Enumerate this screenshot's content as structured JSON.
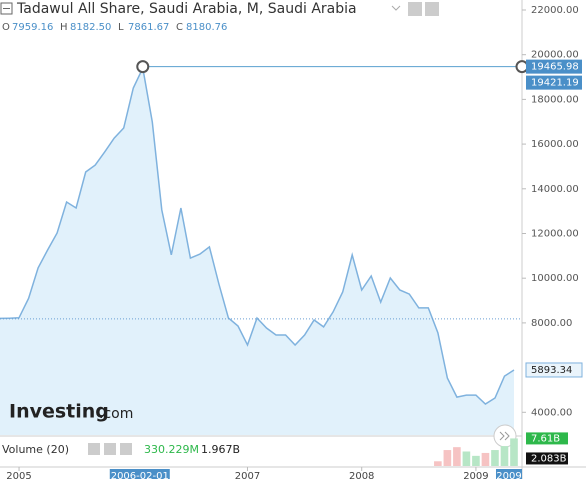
{
  "chart_data": {
    "type": "area",
    "title": "Tadawul All Share, Saudi Arabia, M, Saudi Arabia",
    "ohlc": [
      {
        "label": "O",
        "text": "7959.16"
      },
      {
        "label": "H",
        "text": "8182.50"
      },
      {
        "label": "L",
        "text": "7861.67"
      },
      {
        "label": "C",
        "text": "8180.76"
      }
    ],
    "categories": [
      null,
      null,
      "2005",
      null,
      null,
      null,
      null,
      null,
      null,
      null,
      null,
      null,
      null,
      null,
      null,
      null,
      null,
      null,
      null,
      null,
      null,
      null,
      null,
      null,
      null,
      null,
      "2007",
      null,
      null,
      null,
      null,
      null,
      null,
      null,
      null,
      null,
      null,
      null,
      "2008",
      null,
      null,
      null,
      null,
      null,
      null,
      null,
      null,
      null,
      null,
      null,
      "2009",
      null,
      null,
      null,
      null
    ],
    "series": [
      {
        "name": "Tadawul All Share",
        "color": "#7fb2de",
        "fill": "#e1f1fb",
        "values": [
          8200,
          8210,
          8230,
          9100,
          10460,
          11260,
          12020,
          13410,
          13140,
          14750,
          15060,
          15650,
          16270,
          16720,
          18510,
          19400,
          16990,
          13050,
          11040,
          13140,
          10900,
          11080,
          11400,
          9740,
          8220,
          7860,
          7010,
          8220,
          7770,
          7460,
          7460,
          7010,
          7460,
          8130,
          7820,
          8490,
          9380,
          11040,
          9470,
          10100,
          8930,
          10010,
          9470,
          9290,
          8670,
          8670,
          7550,
          5530,
          4680,
          4770,
          4770,
          4370,
          4640,
          5620,
          5893.34
        ]
      }
    ],
    "ylim": [
      2984,
      22447
    ],
    "yticks": [
      {
        "value": 4000,
        "label": "4000.00"
      },
      {
        "value": 8000,
        "label": "8000.00"
      },
      {
        "value": 10000,
        "label": "10000.00"
      },
      {
        "value": 12000,
        "label": "12000.00"
      },
      {
        "value": 14000,
        "label": "14000.00"
      },
      {
        "value": 16000,
        "label": "16000.00"
      },
      {
        "value": 18000,
        "label": "18000.00"
      },
      {
        "value": 20000,
        "label": "20000.00"
      },
      {
        "value": 22000,
        "label": "22000.00"
      }
    ],
    "reference_level": 8180.76,
    "crosshair": {
      "index": 15,
      "x_label": "2006-02-01",
      "value": 19465.98
    },
    "high_label": 19421.19,
    "last_label": 5893.34,
    "highlight_x_label": "2009",
    "watermark": "Investing",
    "watermark_suffix": ".com",
    "volume": {
      "name": "Volume (20)",
      "readouts": [
        "330.229M",
        "1.967B"
      ],
      "values": [
        null,
        null,
        null,
        null,
        null,
        null,
        null,
        null,
        null,
        null,
        null,
        null,
        null,
        null,
        null,
        null,
        null,
        null,
        null,
        null,
        null,
        null,
        null,
        null,
        null,
        null,
        null,
        null,
        null,
        null,
        null,
        null,
        null,
        null,
        null,
        null,
        null,
        null,
        null,
        null,
        null,
        null,
        null,
        null,
        null,
        null,
        1.3,
        4.4,
        5.2,
        4.0,
        2.8,
        3.6,
        4.4,
        5.5,
        7.61
      ],
      "up_color": "#b7e6c6",
      "down_color": "#f6c3c3",
      "ylim": [
        0,
        8
      ],
      "axis_labels": [
        {
          "value": 7.61,
          "label": "7.61B",
          "color": "#2eb84b"
        },
        {
          "value": 2.083,
          "label": "2.083B",
          "color": "#111111"
        }
      ]
    }
  }
}
